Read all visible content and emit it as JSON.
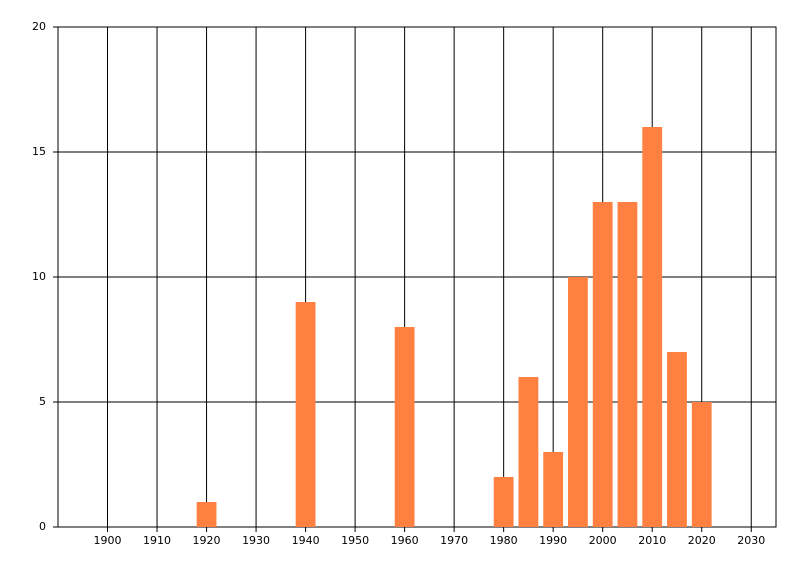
{
  "chart_data": {
    "type": "bar",
    "x": [
      1920,
      1940,
      1960,
      1980,
      1985,
      1990,
      1995,
      2000,
      2005,
      2010,
      2015,
      2020
    ],
    "values": [
      1,
      9,
      8,
      2,
      6,
      3,
      10,
      13,
      13,
      16,
      7,
      5
    ],
    "color": "#ff8040",
    "bar_width": 4,
    "xlim": [
      1890,
      2035
    ],
    "xticks": [
      1900,
      1910,
      1920,
      1930,
      1940,
      1950,
      1960,
      1970,
      1980,
      1990,
      2000,
      2010,
      2020,
      2030
    ],
    "ylim": [
      0,
      20
    ],
    "yticks": [
      0,
      5,
      10,
      15,
      20
    ],
    "grid": true
  }
}
